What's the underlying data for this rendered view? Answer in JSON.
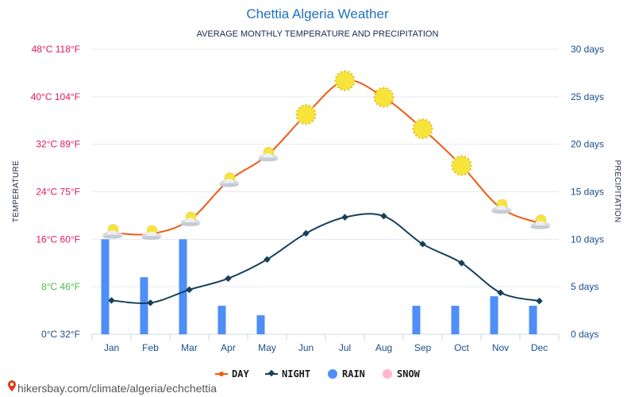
{
  "header": {
    "title": "Chettia Algeria Weather",
    "subtitle": "AVERAGE MONTHLY TEMPERATURE AND PRECIPITATION"
  },
  "axes": {
    "left_title": "TEMPERATURE",
    "right_title": "PRECIPITATION"
  },
  "legend": {
    "day": "DAY",
    "night": "NIGHT",
    "rain": "RAIN",
    "snow": "SNOW"
  },
  "source": {
    "text": "hikersbay.com/climate/algeria/echchettia"
  },
  "colors": {
    "day_line": "#f05a12",
    "night_line": "#17405a",
    "rain_bar": "#4d8ef7",
    "snow_marker": "#ffb6c8",
    "tick_red": "#e0195a",
    "tick_green": "#4cb84c",
    "tick_blue": "#1a4d8a",
    "sun": "#f7e43a"
  },
  "chart_data": {
    "type": "line",
    "title": "Chettia Algeria Weather",
    "subtitle": "AVERAGE MONTHLY TEMPERATURE AND PRECIPITATION",
    "categories": [
      "Jan",
      "Feb",
      "Mar",
      "Apr",
      "May",
      "Jun",
      "Jul",
      "Aug",
      "Sep",
      "Oct",
      "Nov",
      "Dec"
    ],
    "y_left": {
      "label": "TEMPERATURE",
      "unit": "°C",
      "range": [
        0,
        48
      ],
      "ticks": [
        {
          "c": 0,
          "label": "0°C 32°F"
        },
        {
          "c": 8,
          "label": "8°C 46°F"
        },
        {
          "c": 16,
          "label": "16°C 60°F"
        },
        {
          "c": 24,
          "label": "24°C 75°F"
        },
        {
          "c": 32,
          "label": "32°C 89°F"
        },
        {
          "c": 40,
          "label": "40°C 104°F"
        },
        {
          "c": 48,
          "label": "48°C 118°F"
        }
      ]
    },
    "y_right": {
      "label": "PRECIPITATION",
      "unit": "days",
      "range": [
        0,
        30
      ],
      "ticks": [
        {
          "v": 0,
          "label": "0 days"
        },
        {
          "v": 5,
          "label": "5 days"
        },
        {
          "v": 10,
          "label": "10 days"
        },
        {
          "v": 15,
          "label": "15 days"
        },
        {
          "v": 20,
          "label": "20 days"
        },
        {
          "v": 25,
          "label": "25 days"
        },
        {
          "v": 30,
          "label": "30 days"
        }
      ]
    },
    "series": [
      {
        "name": "DAY",
        "axis": "left",
        "values": [
          17.1,
          16.9,
          19.2,
          25.8,
          30.1,
          37.0,
          42.7,
          39.9,
          34.6,
          28.4,
          21.3,
          18.7
        ]
      },
      {
        "name": "NIGHT",
        "axis": "left",
        "values": [
          5.7,
          5.3,
          7.5,
          9.4,
          12.6,
          17.0,
          19.7,
          19.9,
          15.2,
          12.0,
          7.0,
          5.6
        ]
      },
      {
        "name": "RAIN",
        "axis": "right",
        "type": "bar",
        "values": [
          10,
          6,
          10,
          3,
          2,
          0,
          0,
          0,
          3,
          3,
          4,
          3
        ]
      },
      {
        "name": "SNOW",
        "axis": "right",
        "type": "bar",
        "values": [
          0,
          0,
          0,
          0,
          0,
          0,
          0,
          0,
          0,
          0,
          0,
          0
        ]
      }
    ],
    "day_icons": [
      "partly-cloudy",
      "partly-cloudy",
      "partly-cloudy",
      "partly-cloudy",
      "partly-cloudy",
      "sun",
      "sun",
      "sun",
      "sun",
      "sun",
      "partly-cloudy",
      "partly-cloudy"
    ],
    "grid": true,
    "legend_position": "bottom-center"
  }
}
